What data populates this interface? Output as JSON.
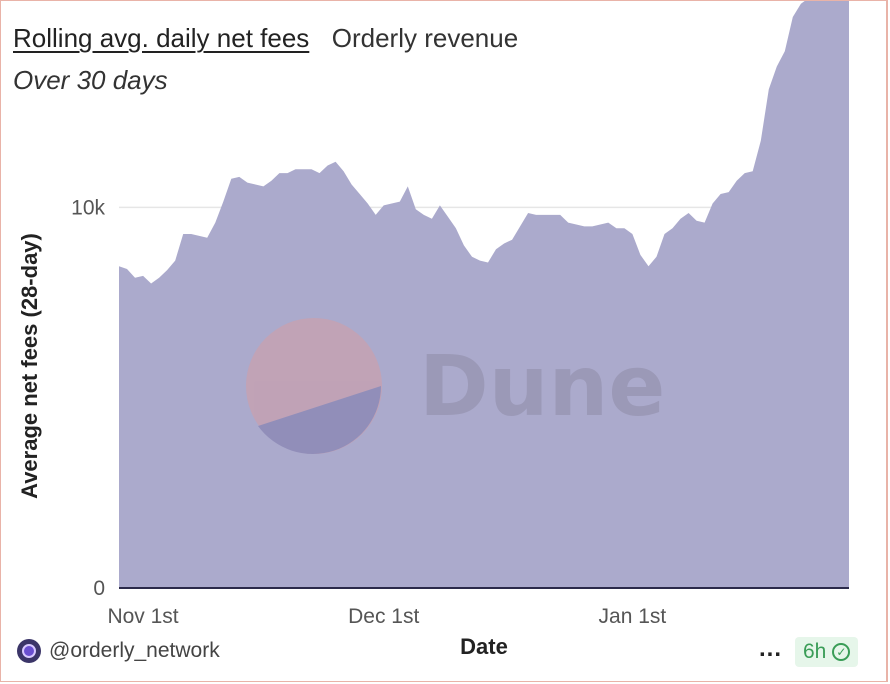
{
  "header": {
    "title": "Rolling avg. daily net fees",
    "subtitle": "Orderly revenue",
    "period": "Over 30 days"
  },
  "watermark": {
    "text": "Dune"
  },
  "footer": {
    "author": "@orderly_network",
    "more_label": "...",
    "freshness": "6h",
    "freshness_icon": "check-circle-icon"
  },
  "colors": {
    "area": "#abaacc",
    "baseline": "#2b2a4a",
    "grid": "#e6e6e6"
  },
  "chart_data": {
    "type": "area",
    "xlabel": "Date",
    "ylabel": "Average net fees (28-day)",
    "ylim": [
      0,
      15000
    ],
    "yticks": [
      {
        "value": 0,
        "label": "0"
      },
      {
        "value": 10000,
        "label": "10k"
      }
    ],
    "xticks": [
      {
        "date": "2023-11-01",
        "label": "Nov 1st"
      },
      {
        "date": "2023-12-01",
        "label": "Dec 1st"
      },
      {
        "date": "2024-01-01",
        "label": "Jan 1st"
      }
    ],
    "grid": true,
    "legend": "none",
    "x": [
      "2023-10-29",
      "2023-10-30",
      "2023-10-31",
      "2023-11-01",
      "2023-11-02",
      "2023-11-03",
      "2023-11-04",
      "2023-11-05",
      "2023-11-06",
      "2023-11-07",
      "2023-11-08",
      "2023-11-09",
      "2023-11-10",
      "2023-11-11",
      "2023-11-12",
      "2023-11-13",
      "2023-11-14",
      "2023-11-15",
      "2023-11-16",
      "2023-11-17",
      "2023-11-18",
      "2023-11-19",
      "2023-11-20",
      "2023-11-21",
      "2023-11-22",
      "2023-11-23",
      "2023-11-24",
      "2023-11-25",
      "2023-11-26",
      "2023-11-27",
      "2023-11-28",
      "2023-11-29",
      "2023-11-30",
      "2023-12-01",
      "2023-12-02",
      "2023-12-03",
      "2023-12-04",
      "2023-12-05",
      "2023-12-06",
      "2023-12-07",
      "2023-12-08",
      "2023-12-09",
      "2023-12-10",
      "2023-12-11",
      "2023-12-12",
      "2023-12-13",
      "2023-12-14",
      "2023-12-15",
      "2023-12-16",
      "2023-12-17",
      "2023-12-18",
      "2023-12-19",
      "2023-12-20",
      "2023-12-21",
      "2023-12-22",
      "2023-12-23",
      "2023-12-24",
      "2023-12-25",
      "2023-12-26",
      "2023-12-27",
      "2023-12-28",
      "2023-12-29",
      "2023-12-30",
      "2023-12-31",
      "2024-01-01",
      "2024-01-02",
      "2024-01-03",
      "2024-01-04",
      "2024-01-05",
      "2024-01-06",
      "2024-01-07",
      "2024-01-08",
      "2024-01-09",
      "2024-01-10",
      "2024-01-11",
      "2024-01-12",
      "2024-01-13",
      "2024-01-14",
      "2024-01-15",
      "2024-01-16",
      "2024-01-17",
      "2024-01-18",
      "2024-01-19",
      "2024-01-20",
      "2024-01-21",
      "2024-01-22",
      "2024-01-23",
      "2024-01-24",
      "2024-01-25",
      "2024-01-26",
      "2024-01-27",
      "2024-01-28"
    ],
    "series": [
      {
        "values": [
          8450,
          8380,
          8150,
          8200,
          8000,
          8150,
          8350,
          8600,
          9300,
          9300,
          9250,
          9200,
          9600,
          10150,
          10750,
          10800,
          10650,
          10600,
          10550,
          10700,
          10900,
          10900,
          11000,
          11000,
          11000,
          10900,
          11100,
          11200,
          10950,
          10600,
          10350,
          10100,
          9800,
          10050,
          10100,
          10150,
          10550,
          9950,
          9800,
          9700,
          10050,
          9750,
          9450,
          9000,
          8700,
          8600,
          8550,
          8900,
          9050,
          9150,
          9500,
          9850,
          9800,
          9800,
          9800,
          9800,
          9600,
          9550,
          9500,
          9500,
          9550,
          9600,
          9450,
          9450,
          9300,
          8750,
          8450,
          8700,
          9300,
          9450,
          9700,
          9850,
          9650,
          9600,
          10100,
          10350,
          10400,
          10700,
          10900,
          10950,
          11750,
          13100,
          13700,
          14100,
          15000,
          15350,
          15500,
          15550,
          15550,
          15550,
          15550,
          15550
        ]
      }
    ]
  }
}
